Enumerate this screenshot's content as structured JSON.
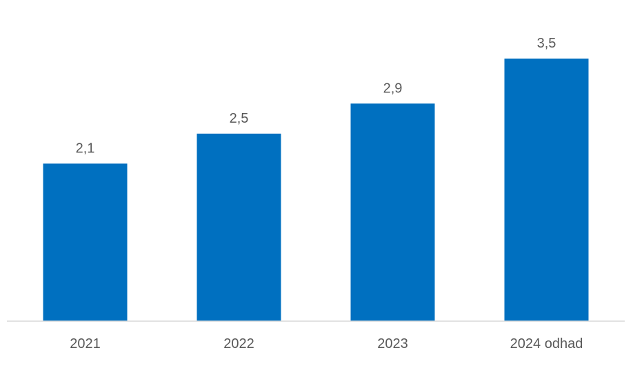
{
  "chart_data": {
    "type": "bar",
    "title": "",
    "xlabel": "",
    "ylabel": "",
    "categories": [
      "2021",
      "2022",
      "2023",
      "2024 odhad"
    ],
    "values": [
      2.1,
      2.5,
      2.9,
      3.5
    ],
    "value_labels": [
      "2,1",
      "2,5",
      "2,9",
      "3,5"
    ],
    "ylim": [
      0,
      3.5
    ],
    "grid": false,
    "legend": "none",
    "bar_color": "#0070C0",
    "text_color": "#595959",
    "axis_color": "#D9D9D9"
  }
}
